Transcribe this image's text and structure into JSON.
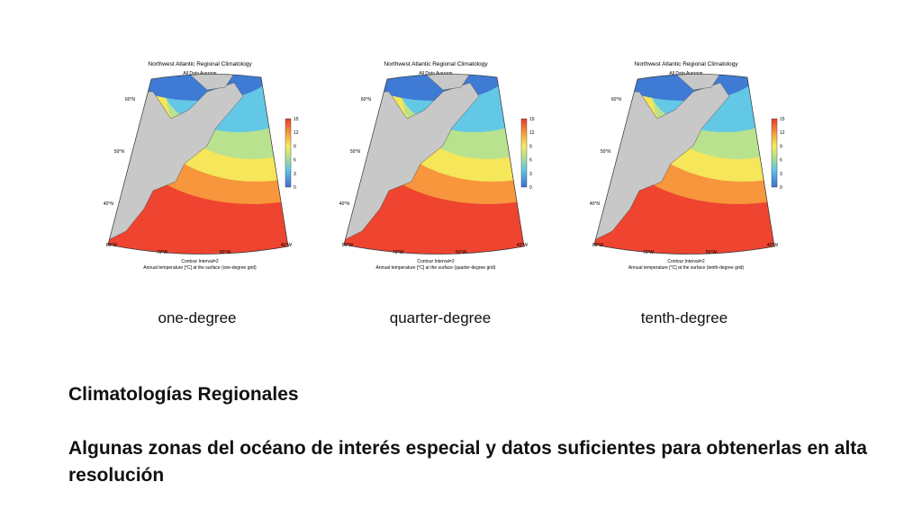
{
  "panels": [
    {
      "title": "Northwest Atlantic Regional Climatology",
      "subtitle": "All Data Average",
      "colorbar_ticks": [
        "0",
        "3",
        "6",
        "9",
        "12",
        "15"
      ],
      "lat_labels": [
        "60°N",
        "50°N",
        "40°N"
      ],
      "lon_labels": [
        "80°W",
        "70°W",
        "50°W",
        "40°W"
      ],
      "contour_note": "Contour Interval=2",
      "caption": "Annual temperature [°C] at the surface (one-degree grid)",
      "label": "one-degree"
    },
    {
      "title": "Northwest Atlantic Regional Climatology",
      "subtitle": "All Data Average",
      "colorbar_ticks": [
        "0",
        "3",
        "6",
        "9",
        "12",
        "15"
      ],
      "lat_labels": [
        "60°N",
        "50°N",
        "40°N"
      ],
      "lon_labels": [
        "80°W",
        "70°W",
        "50°W",
        "40°W"
      ],
      "contour_note": "Contour Interval=2",
      "caption": "Annual temperature [°C] at the surface (quarter-degree grid)",
      "label": "quarter-degree"
    },
    {
      "title": "Northwest Atlantic Regional Climatology",
      "subtitle": "All Data Average",
      "colorbar_ticks": [
        "0",
        "3",
        "6",
        "9",
        "12",
        "15"
      ],
      "lat_labels": [
        "60°N",
        "50°N",
        "40°N"
      ],
      "lon_labels": [
        "80°W",
        "70°W",
        "50°W",
        "40°W"
      ],
      "contour_note": "Contour Interval=2",
      "caption": "Annual temperature [°C] at the surface (tenth-degree grid)",
      "label": "tenth-degree"
    }
  ],
  "heading": "Climatologías Regionales",
  "body": "Algunas zonas del océano de interés especial y datos suficientes para obtenerlas en alta resolución"
}
